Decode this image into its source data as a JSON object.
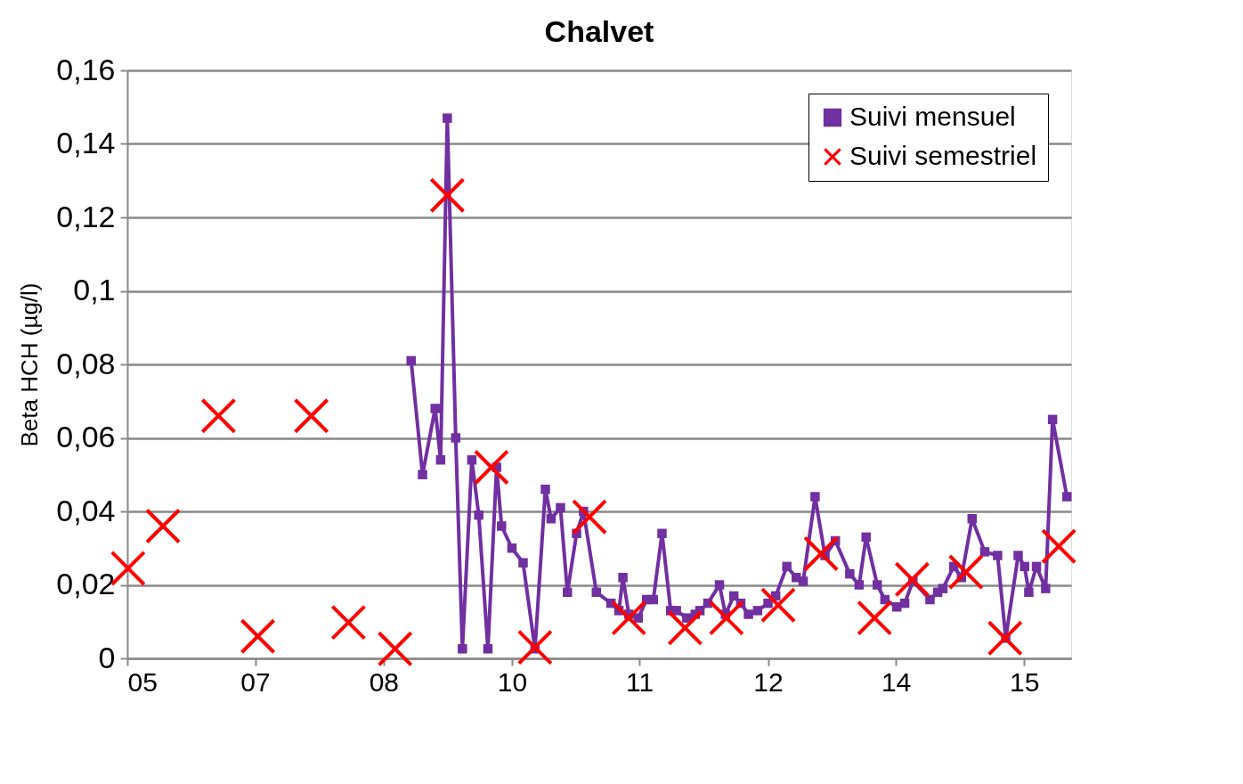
{
  "chart_data": {
    "type": "line",
    "title": "Chalvet",
    "ylabel": "Beta HCH (µg/l)",
    "xlim": [
      "2005-11-01",
      "2016-04-08"
    ],
    "xticks": [
      {
        "value": "2005-11-01",
        "label": "05"
      },
      {
        "value": "2007-04-01",
        "label": "07"
      },
      {
        "value": "2008-09-01",
        "label": "08"
      },
      {
        "value": "2010-02-01",
        "label": "10"
      },
      {
        "value": "2011-07-01",
        "label": "11"
      },
      {
        "value": "2012-12-01",
        "label": "12"
      },
      {
        "value": "2014-05-01",
        "label": "14"
      },
      {
        "value": "2015-10-01",
        "label": "15"
      }
    ],
    "ylim": [
      0,
      0.16
    ],
    "yticks": [
      0,
      {
        "value": 0.02,
        "label": "0,02"
      },
      {
        "value": 0.04,
        "label": "0,04"
      },
      {
        "value": 0.06,
        "label": "0,06"
      },
      {
        "value": 0.08,
        "label": "0,08"
      },
      {
        "value": 0.1,
        "label": "0,1"
      },
      {
        "value": 0.12,
        "label": "0,12"
      },
      {
        "value": 0.14,
        "label": "0,14"
      },
      {
        "value": 0.16,
        "label": "0,16"
      }
    ],
    "grid": "y",
    "legend": "top right",
    "series": [
      {
        "name": "Suivi mensuel",
        "marker": "square",
        "color": "#7030a0",
        "x": [
          "2008-12-21",
          "2009-02-05",
          "2009-03-28",
          "2009-04-19",
          "2009-05-16",
          "2009-06-19",
          "2009-07-16",
          "2009-08-23",
          "2009-09-20",
          "2009-10-27",
          "2009-12-01",
          "2009-12-21",
          "2010-02-01",
          "2010-03-18",
          "2010-05-05",
          "2010-06-16",
          "2010-07-09",
          "2010-08-16",
          "2010-09-13",
          "2010-10-20",
          "2010-11-17",
          "2011-01-08",
          "2011-03-08",
          "2011-04-09",
          "2011-04-25",
          "2011-05-19",
          "2011-06-26",
          "2011-07-30",
          "2011-08-26",
          "2011-09-30",
          "2011-11-04",
          "2011-11-27",
          "2012-01-08",
          "2012-02-11",
          "2012-03-01",
          "2012-04-02",
          "2012-05-19",
          "2012-06-12",
          "2012-07-16",
          "2012-08-13",
          "2012-09-13",
          "2012-10-20",
          "2012-12-01",
          "2013-01-01",
          "2013-02-15",
          "2013-03-25",
          "2013-04-22",
          "2013-06-09",
          "2013-07-19",
          "2013-08-30",
          "2013-10-27",
          "2013-12-04",
          "2014-01-01",
          "2014-02-15",
          "2014-03-18",
          "2014-05-05",
          "2014-06-06",
          "2014-07-09",
          "2014-09-16",
          "2014-10-17",
          "2014-11-07",
          "2014-12-21",
          "2015-01-21",
          "2015-03-05",
          "2015-04-25",
          "2015-06-16",
          "2015-07-19",
          "2015-09-07",
          "2015-10-03",
          "2015-10-20",
          "2015-11-20",
          "2015-12-27",
          "2016-01-24",
          "2016-03-22"
        ],
        "values": [
          0.081,
          0.05,
          0.068,
          0.054,
          0.147,
          0.06,
          0.0026,
          0.054,
          0.039,
          0.0026,
          0.052,
          0.036,
          0.03,
          0.026,
          0.0026,
          0.046,
          0.038,
          0.041,
          0.018,
          0.034,
          0.04,
          0.018,
          0.015,
          0.013,
          0.022,
          0.012,
          0.011,
          0.016,
          0.016,
          0.034,
          0.013,
          0.013,
          0.011,
          0.012,
          0.013,
          0.015,
          0.02,
          0.012,
          0.017,
          0.015,
          0.012,
          0.013,
          0.015,
          0.017,
          0.025,
          0.022,
          0.021,
          0.044,
          0.028,
          0.032,
          0.023,
          0.02,
          0.033,
          0.02,
          0.016,
          0.014,
          0.015,
          0.021,
          0.016,
          0.018,
          0.019,
          0.025,
          0.022,
          0.038,
          0.029,
          0.028,
          0.0055,
          0.028,
          0.025,
          0.018,
          0.025,
          0.019,
          0.065,
          0.044
        ]
      },
      {
        "name": "Suivi semestriel",
        "type": "scatter",
        "marker": "cross",
        "color": "#ff0000",
        "x": [
          "2005-11-04",
          "2006-03-25",
          "2006-11-04",
          "2007-04-12",
          "2007-11-14",
          "2008-04-12",
          "2008-10-17",
          "2009-05-16",
          "2009-11-10",
          "2010-05-05",
          "2010-12-11",
          "2011-05-19",
          "2012-01-01",
          "2012-06-16",
          "2013-01-11",
          "2013-07-03",
          "2014-02-04",
          "2014-07-06",
          "2015-02-08",
          "2015-07-16",
          "2016-02-18"
        ],
        "values": [
          0.0245,
          0.036,
          0.066,
          0.006,
          0.066,
          0.0098,
          0.0026,
          0.126,
          0.052,
          0.003,
          0.0385,
          0.011,
          0.0083,
          0.011,
          0.0145,
          0.0285,
          0.011,
          0.0215,
          0.0235,
          0.0055,
          0.0305
        ]
      }
    ]
  }
}
